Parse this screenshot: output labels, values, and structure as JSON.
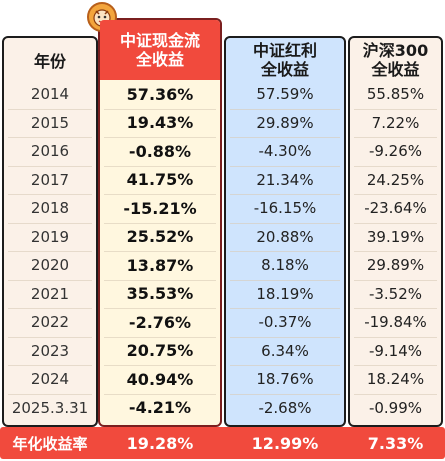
{
  "header": {
    "year": "年份",
    "cash_line1": "中证现金流",
    "cash_line2": "全收益",
    "div_line1": "中证红利",
    "div_line2": "全收益",
    "hs_line1": "沪深300",
    "hs_line2": "全收益"
  },
  "rows": [
    {
      "year": "2014",
      "cash": "57.36%",
      "div": "57.59%",
      "hs": "55.85%"
    },
    {
      "year": "2015",
      "cash": "19.43%",
      "div": "29.89%",
      "hs": "7.22%"
    },
    {
      "year": "2016",
      "cash": "-0.88%",
      "div": "-4.30%",
      "hs": "-9.26%"
    },
    {
      "year": "2017",
      "cash": "41.75%",
      "div": "21.34%",
      "hs": "24.25%"
    },
    {
      "year": "2018",
      "cash": "-15.21%",
      "div": "-16.15%",
      "hs": "-23.64%"
    },
    {
      "year": "2019",
      "cash": "25.52%",
      "div": "20.88%",
      "hs": "39.19%"
    },
    {
      "year": "2020",
      "cash": "13.87%",
      "div": "8.18%",
      "hs": "29.89%"
    },
    {
      "year": "2021",
      "cash": "35.53%",
      "div": "18.19%",
      "hs": "-3.52%"
    },
    {
      "year": "2022",
      "cash": "-2.76%",
      "div": "-0.37%",
      "hs": "-19.84%"
    },
    {
      "year": "2023",
      "cash": "20.75%",
      "div": "6.34%",
      "hs": "-9.14%"
    },
    {
      "year": "2024",
      "cash": "40.94%",
      "div": "18.76%",
      "hs": "18.24%"
    },
    {
      "year": "2025.3.31",
      "cash": "-4.21%",
      "div": "-2.68%",
      "hs": "-0.99%"
    }
  ],
  "footer": {
    "label": "年化收益率",
    "cash": "19.28%",
    "div": "12.99%",
    "hs": "7.33%"
  },
  "colors": {
    "accent_red": "#f14a3d",
    "cash_bg": "#fff7df",
    "div_bg": "#cfe4fd",
    "neutral_bg": "#fbf1e8"
  },
  "icons": {
    "badge": "mascot-badge-icon"
  }
}
